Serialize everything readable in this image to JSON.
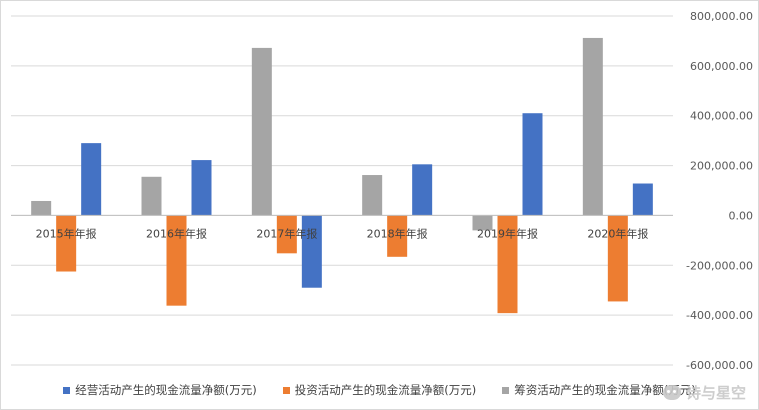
{
  "chart_data": {
    "type": "bar",
    "categories": [
      "2015年年报",
      "2016年年报",
      "2017年年报",
      "2018年年报",
      "2019年年报",
      "2020年年报"
    ],
    "series": [
      {
        "name": "经营活动产生的现金流量净额(万元)",
        "color": "#4472c4",
        "values": [
          290000,
          222000,
          -290000,
          205000,
          410000,
          128000
        ]
      },
      {
        "name": "投资活动产生的现金流量净额(万元)",
        "color": "#ed7d31",
        "values": [
          -225000,
          -362000,
          -152000,
          -166000,
          -392000,
          -345000
        ]
      },
      {
        "name": "筹资活动产生的现金流量净额(万元)",
        "color": "#a5a5a5",
        "values": [
          58000,
          155000,
          672000,
          162000,
          -60000,
          712000
        ]
      }
    ],
    "draw_order": [
      2,
      1,
      0
    ],
    "ylim": [
      -600000,
      800000
    ],
    "ytick_step": 200000,
    "yticks": [
      "800,000.00",
      "600,000.00",
      "400,000.00",
      "200,000.00",
      "0.00",
      "-200,000.00",
      "-400,000.00",
      "-600,000.00"
    ],
    "y_axis_side": "right",
    "grid": true,
    "legend_position": "bottom",
    "title": "",
    "xlabel": "",
    "ylabel": ""
  },
  "watermark": {
    "text": "诗与星空",
    "icon": "wechat-icon"
  }
}
